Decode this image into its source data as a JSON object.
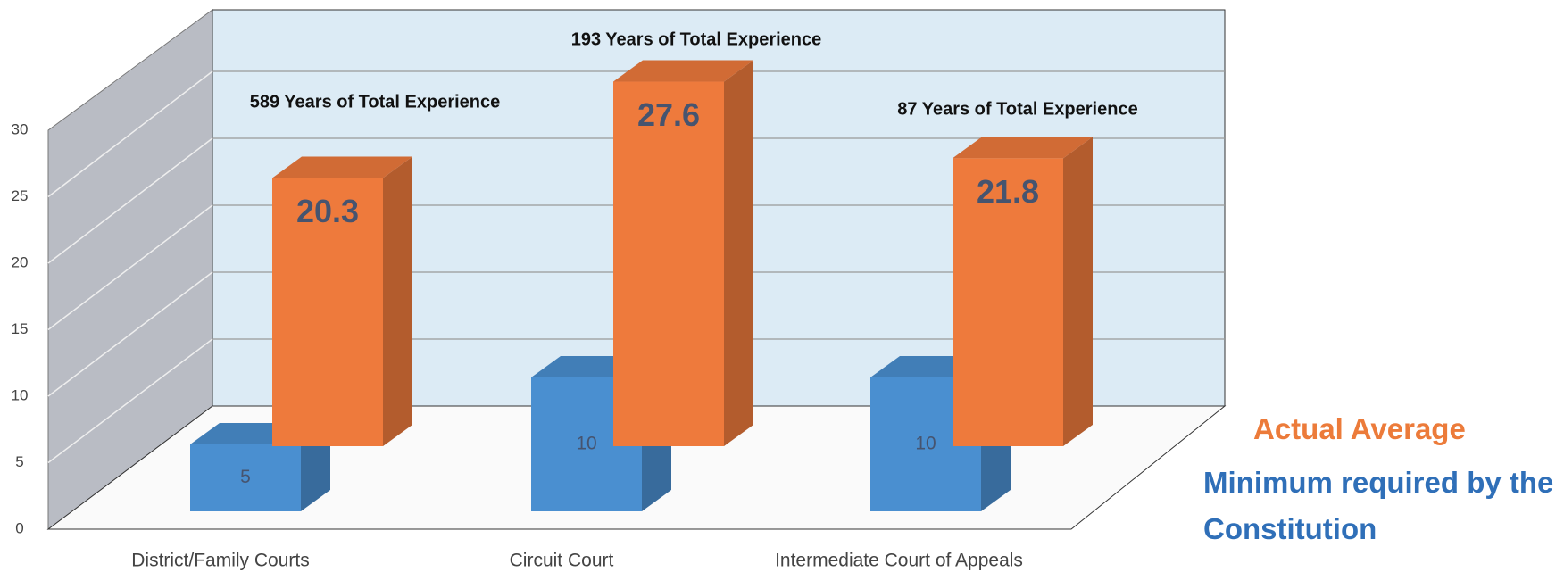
{
  "chart_data": {
    "type": "bar3d",
    "categories": [
      "District/Family Courts",
      "Circuit Court",
      "Intermediate Court of Appeals"
    ],
    "series": [
      {
        "name": "Actual Average",
        "color": "#ee7a3c",
        "values": [
          20.3,
          27.6,
          21.8
        ]
      },
      {
        "name": "Minimum required by the Constitution",
        "color": "#4a8fd0",
        "values": [
          5,
          10,
          10
        ]
      }
    ],
    "annotations": [
      "589 Years of Total Experience",
      "193 Years of Total Experience",
      "87 Years of Total Experience"
    ],
    "ylim": [
      0,
      30
    ],
    "yticks": [
      0,
      5,
      10,
      15,
      20,
      25,
      30
    ],
    "grid": true
  }
}
